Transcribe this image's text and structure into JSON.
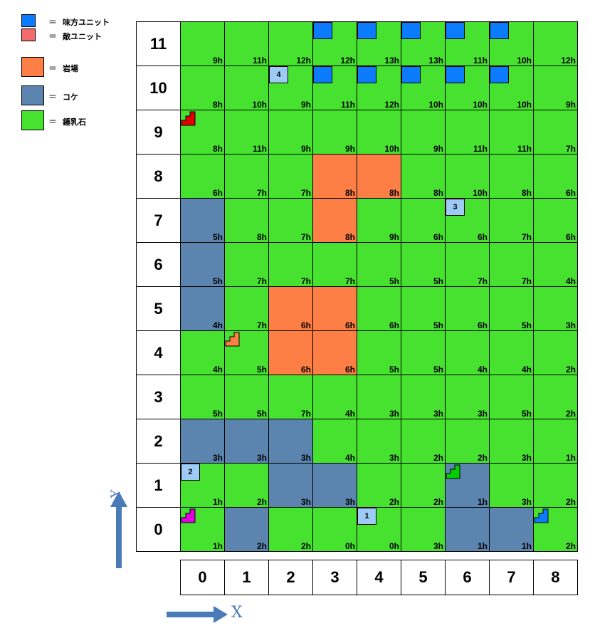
{
  "legend": [
    {
      "color": "#0b7cff",
      "eq": "＝",
      "label": "味方ユニット"
    },
    {
      "color": "#f26a6a",
      "eq": "＝",
      "label": "敵ユニット"
    },
    {
      "color": "#fd7f46",
      "eq": "＝",
      "label": "岩場"
    },
    {
      "color": "#5b84ae",
      "eq": "＝",
      "label": "コケ"
    },
    {
      "color": "#47e130",
      "eq": "＝",
      "label": "鍾乳石"
    }
  ],
  "terrain_colors": {
    "G": "#47e130",
    "R": "#fd7f46",
    "M": "#5b84ae"
  },
  "axes": {
    "x_label": "X",
    "y_label": "Y"
  },
  "columns": [
    "0",
    "1",
    "2",
    "3",
    "4",
    "5",
    "6",
    "7",
    "8"
  ],
  "rows": [
    {
      "label": "11",
      "terrain": [
        "G",
        "G",
        "G",
        "G",
        "G",
        "G",
        "G",
        "G",
        "G"
      ],
      "times": [
        "9h",
        "11h",
        "12h",
        "12h",
        "13h",
        "13h",
        "11h",
        "10h",
        "12h"
      ]
    },
    {
      "label": "10",
      "terrain": [
        "G",
        "G",
        "G",
        "G",
        "G",
        "G",
        "G",
        "G",
        "G"
      ],
      "times": [
        "8h",
        "10h",
        "9h",
        "11h",
        "12h",
        "10h",
        "10h",
        "10h",
        "9h"
      ]
    },
    {
      "label": "9",
      "terrain": [
        "G",
        "G",
        "G",
        "G",
        "G",
        "G",
        "G",
        "G",
        "G"
      ],
      "times": [
        "8h",
        "11h",
        "9h",
        "9h",
        "10h",
        "9h",
        "11h",
        "11h",
        "7h"
      ]
    },
    {
      "label": "8",
      "terrain": [
        "G",
        "G",
        "G",
        "R",
        "R",
        "G",
        "G",
        "G",
        "G"
      ],
      "times": [
        "6h",
        "7h",
        "7h",
        "8h",
        "8h",
        "8h",
        "10h",
        "8h",
        "6h"
      ]
    },
    {
      "label": "7",
      "terrain": [
        "M",
        "G",
        "G",
        "R",
        "G",
        "G",
        "G",
        "G",
        "G"
      ],
      "times": [
        "5h",
        "8h",
        "7h",
        "8h",
        "9h",
        "6h",
        "6h",
        "7h",
        "6h"
      ]
    },
    {
      "label": "6",
      "terrain": [
        "M",
        "G",
        "G",
        "G",
        "G",
        "G",
        "G",
        "G",
        "G"
      ],
      "times": [
        "5h",
        "7h",
        "7h",
        "7h",
        "5h",
        "5h",
        "7h",
        "7h",
        "4h"
      ]
    },
    {
      "label": "5",
      "terrain": [
        "M",
        "G",
        "R",
        "R",
        "G",
        "G",
        "G",
        "G",
        "G"
      ],
      "times": [
        "4h",
        "7h",
        "6h",
        "6h",
        "6h",
        "5h",
        "6h",
        "5h",
        "3h"
      ]
    },
    {
      "label": "4",
      "terrain": [
        "G",
        "G",
        "R",
        "R",
        "G",
        "G",
        "G",
        "G",
        "G"
      ],
      "times": [
        "4h",
        "5h",
        "6h",
        "6h",
        "5h",
        "5h",
        "4h",
        "4h",
        "2h"
      ]
    },
    {
      "label": "3",
      "terrain": [
        "G",
        "G",
        "G",
        "G",
        "G",
        "G",
        "G",
        "G",
        "G"
      ],
      "times": [
        "5h",
        "5h",
        "7h",
        "4h",
        "3h",
        "3h",
        "3h",
        "5h",
        "2h"
      ]
    },
    {
      "label": "2",
      "terrain": [
        "M",
        "M",
        "M",
        "G",
        "G",
        "G",
        "G",
        "G",
        "G"
      ],
      "times": [
        "3h",
        "3h",
        "3h",
        "4h",
        "3h",
        "2h",
        "2h",
        "3h",
        "1h"
      ]
    },
    {
      "label": "1",
      "terrain": [
        "G",
        "G",
        "M",
        "M",
        "G",
        "G",
        "M",
        "G",
        "G"
      ],
      "times": [
        "1h",
        "2h",
        "3h",
        "3h",
        "2h",
        "2h",
        "1h",
        "3h",
        "2h"
      ]
    },
    {
      "label": "0",
      "terrain": [
        "G",
        "M",
        "G",
        "G",
        "G",
        "G",
        "M",
        "M",
        "G"
      ],
      "times": [
        "1h",
        "2h",
        "2h",
        "0h",
        "0h",
        "3h",
        "1h",
        "1h",
        "2h"
      ]
    }
  ],
  "ally_markers": [
    {
      "row": "11",
      "col": 3
    },
    {
      "row": "11",
      "col": 4
    },
    {
      "row": "11",
      "col": 5
    },
    {
      "row": "11",
      "col": 6
    },
    {
      "row": "11",
      "col": 7
    },
    {
      "row": "10",
      "col": 3
    },
    {
      "row": "10",
      "col": 4
    },
    {
      "row": "10",
      "col": 5
    },
    {
      "row": "10",
      "col": 6
    },
    {
      "row": "10",
      "col": 7
    }
  ],
  "units": [
    {
      "label": "4",
      "row": "10",
      "col": 2
    },
    {
      "label": "3",
      "row": "7",
      "col": 6
    },
    {
      "label": "2",
      "row": "1",
      "col": 0
    },
    {
      "label": "1",
      "row": "0",
      "col": 4
    }
  ],
  "stair_icons": [
    {
      "row": "9",
      "col": 0,
      "color": "#e00000",
      "name": "red-stair-icon"
    },
    {
      "row": "4",
      "col": 1,
      "color": "#fd7f46",
      "name": "orange-stair-icon"
    },
    {
      "row": "1",
      "col": 6,
      "color": "#00d000",
      "name": "green-stair-icon"
    },
    {
      "row": "0",
      "col": 0,
      "color": "#e000e0",
      "name": "magenta-stair-icon"
    },
    {
      "row": "0",
      "col": 8,
      "color": "#0b7cff",
      "name": "blue-stair-icon"
    }
  ]
}
